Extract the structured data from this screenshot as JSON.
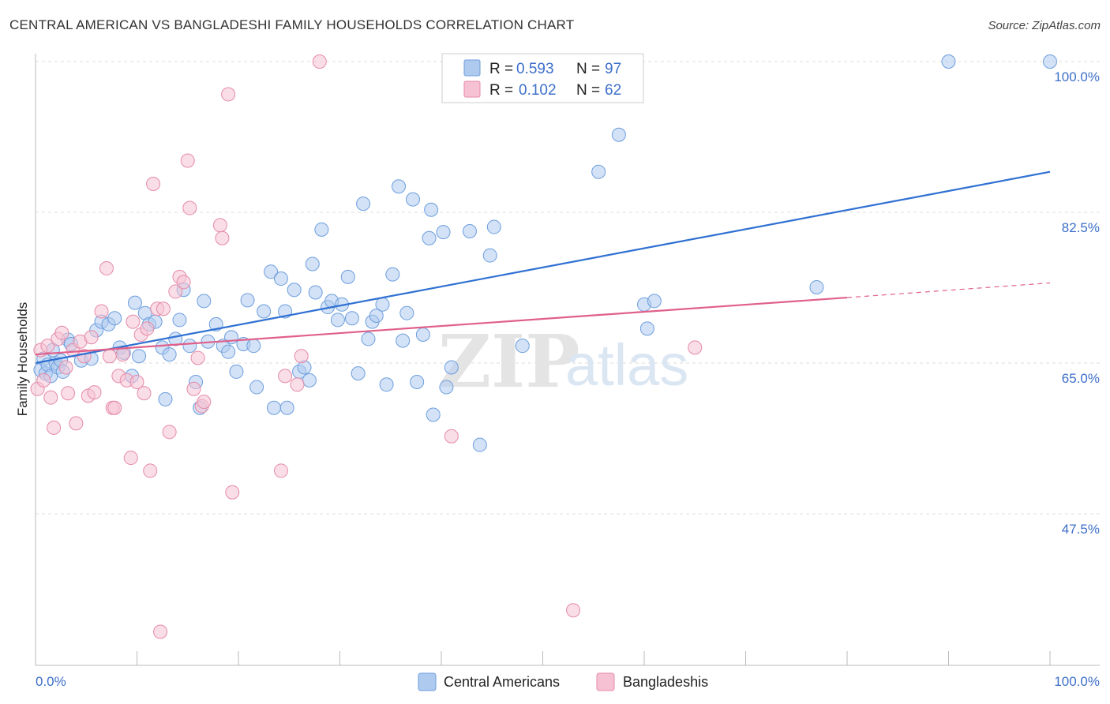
{
  "title": "CENTRAL AMERICAN VS BANGLADESHI FAMILY HOUSEHOLDS CORRELATION CHART",
  "source": "Source: ZipAtlas.com",
  "watermark": {
    "zip": "ZIP",
    "atlas": "atlas"
  },
  "colors": {
    "blue_fill": "#aecbef",
    "blue_stroke": "#6d9ede",
    "blue_line": "#2f70d2",
    "pink_fill": "#f6c2d3",
    "pink_stroke": "#e58aa8",
    "pink_line": "#e0608a",
    "tick_label": "#3d6fc9",
    "grid": "#dddddd"
  },
  "legend": {
    "rows": [
      {
        "r_label": "R =",
        "r_value": "0.593",
        "n_label": "N =",
        "n_value": "97"
      },
      {
        "r_label": "R =",
        "r_value": "0.102",
        "n_label": "N =",
        "n_value": "62"
      }
    ]
  },
  "bottom_legend": [
    "Central Americans",
    "Bangladeshis"
  ],
  "chart_data": {
    "type": "scatter",
    "title": "CENTRAL AMERICAN VS BANGLADESHI FAMILY HOUSEHOLDS CORRELATION CHART",
    "xlabel": "",
    "ylabel": "Family Households",
    "xlim": [
      0,
      100
    ],
    "ylim": [
      30,
      101
    ],
    "x_tick_labels": [
      "0.0%",
      "100.0%"
    ],
    "y_ticks": [
      47.5,
      65.0,
      82.5,
      100.0
    ],
    "y_tick_labels": [
      "47.5%",
      "65.0%",
      "82.5%",
      "100.0%"
    ],
    "series": [
      {
        "name": "Central Americans",
        "R": 0.593,
        "N": 97,
        "trend": {
          "x": [
            0,
            100
          ],
          "y": [
            65.0,
            87.2
          ]
        },
        "points": [
          [
            0.5,
            64.2
          ],
          [
            0.8,
            65.5
          ],
          [
            1.0,
            63.8
          ],
          [
            1.2,
            64.8
          ],
          [
            1.5,
            63.5
          ],
          [
            1.7,
            66.5
          ],
          [
            2.0,
            65.0
          ],
          [
            2.2,
            64.5
          ],
          [
            2.5,
            65.3
          ],
          [
            2.7,
            64.0
          ],
          [
            3.2,
            67.7
          ],
          [
            3.5,
            67.2
          ],
          [
            4.5,
            65.3
          ],
          [
            5.5,
            65.5
          ],
          [
            6.0,
            68.8
          ],
          [
            6.5,
            69.8
          ],
          [
            7.2,
            69.5
          ],
          [
            7.8,
            70.2
          ],
          [
            8.3,
            66.8
          ],
          [
            8.7,
            66.2
          ],
          [
            9.5,
            63.5
          ],
          [
            9.8,
            72.0
          ],
          [
            10.2,
            65.8
          ],
          [
            10.8,
            70.8
          ],
          [
            11.2,
            69.5
          ],
          [
            11.8,
            69.8
          ],
          [
            12.5,
            66.8
          ],
          [
            12.8,
            60.8
          ],
          [
            13.2,
            66.0
          ],
          [
            13.8,
            67.8
          ],
          [
            14.2,
            70.0
          ],
          [
            14.6,
            73.5
          ],
          [
            15.2,
            67.0
          ],
          [
            15.8,
            62.8
          ],
          [
            16.2,
            59.8
          ],
          [
            16.6,
            72.2
          ],
          [
            17.0,
            67.5
          ],
          [
            17.8,
            69.5
          ],
          [
            18.5,
            67.0
          ],
          [
            19.0,
            66.3
          ],
          [
            19.3,
            68.0
          ],
          [
            19.8,
            64.0
          ],
          [
            20.5,
            67.2
          ],
          [
            20.9,
            72.3
          ],
          [
            21.5,
            67.0
          ],
          [
            21.8,
            62.2
          ],
          [
            22.5,
            71.0
          ],
          [
            23.2,
            75.6
          ],
          [
            23.5,
            59.8
          ],
          [
            24.2,
            74.8
          ],
          [
            24.6,
            71.0
          ],
          [
            24.8,
            59.8
          ],
          [
            25.5,
            73.5
          ],
          [
            26.0,
            64.0
          ],
          [
            26.5,
            64.5
          ],
          [
            27.0,
            63.0
          ],
          [
            27.3,
            76.5
          ],
          [
            27.6,
            73.2
          ],
          [
            28.2,
            80.5
          ],
          [
            28.8,
            71.5
          ],
          [
            29.2,
            72.2
          ],
          [
            29.8,
            70.0
          ],
          [
            30.2,
            71.8
          ],
          [
            30.8,
            75.0
          ],
          [
            31.2,
            70.2
          ],
          [
            31.8,
            63.8
          ],
          [
            32.3,
            83.5
          ],
          [
            32.8,
            67.8
          ],
          [
            33.2,
            69.8
          ],
          [
            33.6,
            70.5
          ],
          [
            34.2,
            71.8
          ],
          [
            34.6,
            62.5
          ],
          [
            35.2,
            75.3
          ],
          [
            35.8,
            85.5
          ],
          [
            36.2,
            67.6
          ],
          [
            36.6,
            70.8
          ],
          [
            37.2,
            84.0
          ],
          [
            37.6,
            62.8
          ],
          [
            38.2,
            68.3
          ],
          [
            38.8,
            79.5
          ],
          [
            39.0,
            82.8
          ],
          [
            39.2,
            59.0
          ],
          [
            40.2,
            80.2
          ],
          [
            40.5,
            62.2
          ],
          [
            41.0,
            64.5
          ],
          [
            42.8,
            80.3
          ],
          [
            43.8,
            55.5
          ],
          [
            44.8,
            77.5
          ],
          [
            45.2,
            80.8
          ],
          [
            48.0,
            67.0
          ],
          [
            55.5,
            87.2
          ],
          [
            57.5,
            91.5
          ],
          [
            60.0,
            71.8
          ],
          [
            60.3,
            69.0
          ],
          [
            61.0,
            72.2
          ],
          [
            77.0,
            73.8
          ],
          [
            90.0,
            100.0
          ],
          [
            100.0,
            100.0
          ]
        ]
      },
      {
        "name": "Bangladeshis",
        "R": 0.102,
        "N": 62,
        "trend": {
          "x": [
            0,
            80
          ],
          "y": [
            66.0,
            72.6
          ]
        },
        "trend_dashed": {
          "x": [
            80,
            100
          ],
          "y": [
            72.6,
            74.3
          ]
        },
        "points": [
          [
            0.2,
            62.0
          ],
          [
            0.5,
            66.5
          ],
          [
            0.8,
            63.0
          ],
          [
            1.2,
            67.0
          ],
          [
            1.5,
            61.0
          ],
          [
            1.8,
            57.5
          ],
          [
            2.2,
            67.8
          ],
          [
            2.6,
            68.5
          ],
          [
            3.0,
            64.5
          ],
          [
            3.2,
            61.5
          ],
          [
            3.7,
            66.5
          ],
          [
            4.0,
            58.0
          ],
          [
            4.4,
            67.5
          ],
          [
            4.8,
            65.8
          ],
          [
            5.2,
            61.2
          ],
          [
            5.5,
            68.0
          ],
          [
            5.8,
            61.6
          ],
          [
            6.5,
            71.0
          ],
          [
            7.0,
            76.0
          ],
          [
            7.3,
            65.8
          ],
          [
            7.6,
            59.8
          ],
          [
            7.8,
            59.8
          ],
          [
            8.2,
            63.5
          ],
          [
            8.6,
            66.0
          ],
          [
            9.0,
            63.0
          ],
          [
            9.4,
            54.0
          ],
          [
            9.6,
            69.8
          ],
          [
            10.0,
            62.8
          ],
          [
            10.4,
            68.3
          ],
          [
            10.7,
            61.5
          ],
          [
            11.0,
            69.0
          ],
          [
            11.3,
            52.5
          ],
          [
            11.6,
            85.8
          ],
          [
            12.0,
            71.3
          ],
          [
            12.3,
            33.8
          ],
          [
            12.6,
            71.3
          ],
          [
            13.2,
            57.0
          ],
          [
            13.8,
            73.3
          ],
          [
            14.2,
            75.0
          ],
          [
            14.6,
            74.4
          ],
          [
            15.0,
            88.5
          ],
          [
            15.2,
            83.0
          ],
          [
            15.6,
            62.0
          ],
          [
            16.0,
            65.6
          ],
          [
            16.4,
            60.0
          ],
          [
            16.6,
            60.5
          ],
          [
            18.2,
            81.0
          ],
          [
            18.4,
            79.5
          ],
          [
            19.0,
            96.2
          ],
          [
            19.4,
            50.0
          ],
          [
            24.2,
            52.5
          ],
          [
            24.6,
            63.5
          ],
          [
            25.8,
            62.5
          ],
          [
            26.2,
            65.8
          ],
          [
            28.0,
            100.0
          ],
          [
            41.0,
            56.5
          ],
          [
            53.0,
            36.3
          ],
          [
            65.0,
            66.8
          ]
        ]
      }
    ]
  }
}
